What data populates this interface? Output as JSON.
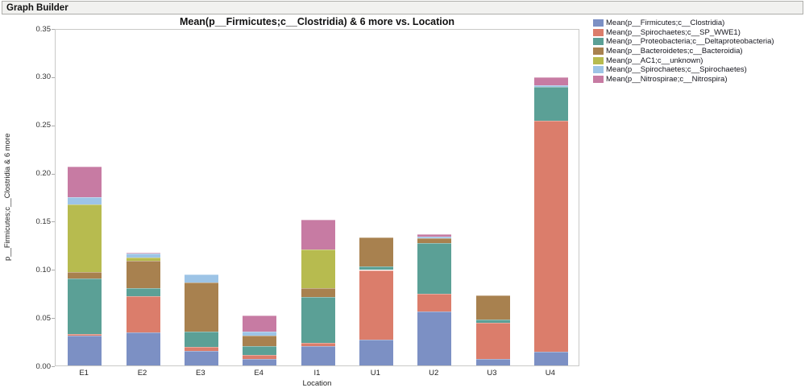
{
  "window": {
    "title": "Graph Builder"
  },
  "chart_data": {
    "type": "bar",
    "stacked": true,
    "title": "Mean(p__Firmicutes;c__Clostridia) & 6 more vs. Location",
    "xlabel": "Location",
    "ylabel": "p__Firmicutes;c__Clostridia & 6 more",
    "ylim": [
      0,
      0.35
    ],
    "yticks": [
      0.0,
      0.05,
      0.1,
      0.15,
      0.2,
      0.25,
      0.3,
      0.35
    ],
    "grid": false,
    "legend_position": "right-top",
    "frame_color": "#c9c9c7",
    "categories": [
      "E1",
      "E2",
      "E3",
      "E4",
      "I1",
      "U1",
      "U2",
      "U3",
      "U4"
    ],
    "series": [
      {
        "name": "Mean(p__Firmicutes;c__Clostridia)",
        "color": "#7C90C4",
        "values": [
          0.031,
          0.034,
          0.015,
          0.007,
          0.02,
          0.027,
          0.056,
          0.007,
          0.014
        ]
      },
      {
        "name": "Mean(p__Spirochaetes;c__SP_WWE1)",
        "color": "#DB7D6B",
        "values": [
          0.002,
          0.038,
          0.004,
          0.004,
          0.003,
          0.072,
          0.018,
          0.037,
          0.24
        ]
      },
      {
        "name": "Mean(p__Proteobacteria;c__Deltaproteobacteria)",
        "color": "#5BA096",
        "values": [
          0.057,
          0.008,
          0.016,
          0.009,
          0.048,
          0.004,
          0.053,
          0.004,
          0.035
        ]
      },
      {
        "name": "Mean(p__Bacteroidetes;c__Bacteroidia)",
        "color": "#A8814F",
        "values": [
          0.007,
          0.029,
          0.051,
          0.011,
          0.009,
          0.03,
          0.005,
          0.025,
          0.0
        ]
      },
      {
        "name": "Mean(p__AC1;c__unknown)",
        "color": "#B7BB4F",
        "values": [
          0.07,
          0.003,
          0.0,
          0.0,
          0.04,
          0.0,
          0.0,
          0.0,
          0.0
        ]
      },
      {
        "name": "Mean(p__Spirochaetes;c__Spirochaetes)",
        "color": "#9DC4E6",
        "values": [
          0.008,
          0.004,
          0.008,
          0.004,
          0.0,
          0.0,
          0.002,
          0.0,
          0.002
        ]
      },
      {
        "name": "Mean(p__Nitrospirae;c__Nitrospira)",
        "color": "#C77BA3",
        "values": [
          0.031,
          0.001,
          0.0,
          0.017,
          0.031,
          0.0,
          0.002,
          0.0,
          0.008
        ]
      }
    ]
  }
}
